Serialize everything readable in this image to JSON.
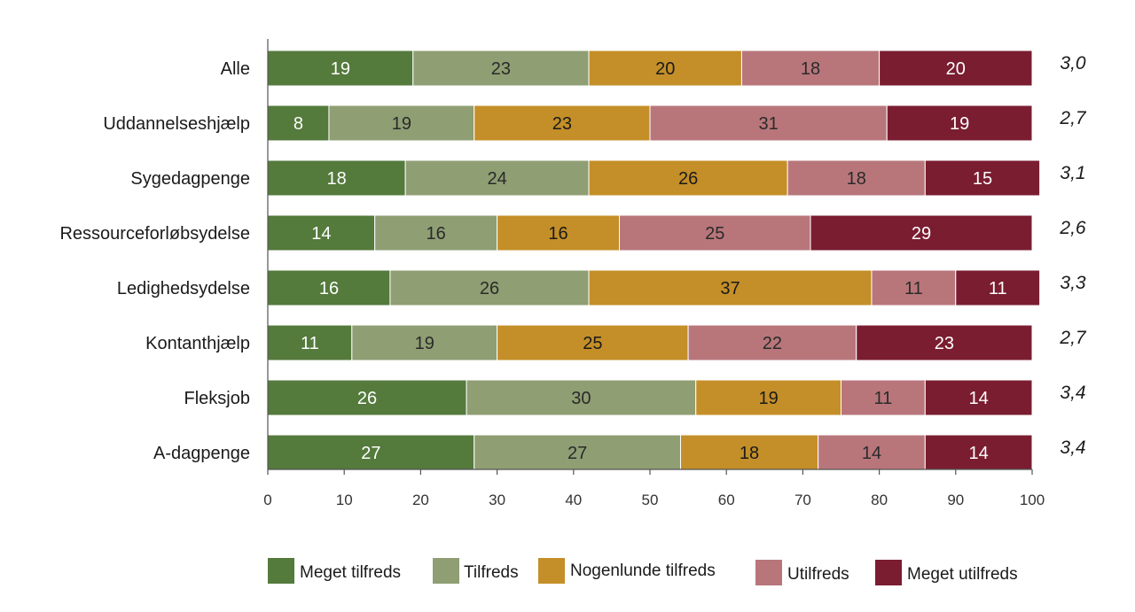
{
  "chart_data": {
    "type": "bar",
    "orientation": "horizontal",
    "stacked": true,
    "categories": [
      "Alle",
      "Uddannelseshjælp",
      "Sygedagpenge",
      "Ressourceforløbsydelse",
      "Ledighedsydelse",
      "Kontanthjælp",
      "Fleksjob",
      "A-dagpenge"
    ],
    "series": [
      {
        "name": "Meget tilfreds",
        "color": "#547a3c",
        "label_color": "#ffffff",
        "values": [
          19,
          8,
          18,
          14,
          16,
          11,
          26,
          27
        ]
      },
      {
        "name": "Tilfreds",
        "color": "#8f9e73",
        "label_color": "#2a2a2a",
        "values": [
          23,
          19,
          24,
          16,
          26,
          19,
          30,
          27
        ]
      },
      {
        "name": "Nogenlunde tilfreds",
        "color": "#c48f28",
        "label_color": "#1a1a1a",
        "values": [
          20,
          23,
          26,
          16,
          37,
          25,
          19,
          18
        ]
      },
      {
        "name": "Utilfreds",
        "color": "#b8767b",
        "label_color": "#2a2a2a",
        "values": [
          18,
          31,
          18,
          25,
          11,
          22,
          11,
          14
        ]
      },
      {
        "name": "Meget utilfreds",
        "color": "#7a1d30",
        "label_color": "#ffffff",
        "values": [
          20,
          19,
          15,
          29,
          11,
          23,
          14,
          14
        ]
      }
    ],
    "right_labels": [
      "3,0",
      "2,7",
      "3,1",
      "2,6",
      "3,3",
      "2,7",
      "3,4",
      "3,4"
    ],
    "xlim": [
      0,
      100
    ],
    "xticks": [
      "0",
      "10",
      "20",
      "30",
      "40",
      "50",
      "60",
      "70",
      "80",
      "90",
      "100"
    ],
    "title": "",
    "xlabel": "",
    "ylabel": "",
    "grid": false,
    "legend_position": "bottom"
  }
}
